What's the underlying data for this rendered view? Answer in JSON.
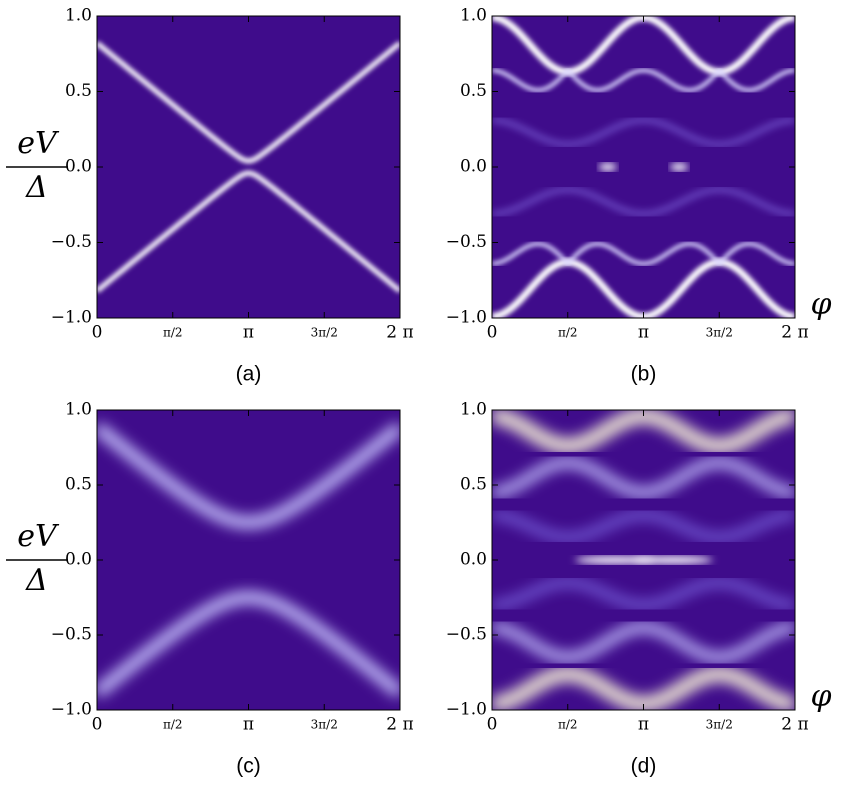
{
  "chart_data": [
    {
      "type": "heatmap",
      "caption": "(a)",
      "ylabel": {
        "top": "eV",
        "bottom": "Δ"
      },
      "xlim": [
        0,
        6.2832
      ],
      "ylim": [
        -1,
        1
      ],
      "xticks": [
        0,
        {
          "value": 1.5708,
          "label": "π/2"
        },
        {
          "value": 3.1416,
          "label": "π"
        },
        {
          "value": 4.7124,
          "label": "3π/2"
        },
        {
          "value": 6.2832,
          "label": "2 π"
        }
      ],
      "yticks": [
        {
          "value": -1,
          "label": "−1.0"
        },
        {
          "value": -0.5,
          "label": "−0.5"
        },
        {
          "value": 0,
          "label": "0.0"
        },
        {
          "value": 0.5,
          "label": "0.5"
        },
        {
          "value": 1,
          "label": "1.0"
        }
      ]
    },
    {
      "type": "heatmap",
      "caption": "(b)",
      "xlabel": "φ",
      "xlim": [
        0,
        6.2832
      ],
      "ylim": [
        -1,
        1
      ],
      "xticks": [
        0,
        {
          "value": 1.5708,
          "label": "π/2"
        },
        {
          "value": 3.1416,
          "label": "π"
        },
        {
          "value": 4.7124,
          "label": "3π/2"
        },
        {
          "value": 6.2832,
          "label": "2 π"
        }
      ],
      "yticks": [
        {
          "value": -1,
          "label": "−1.0"
        },
        {
          "value": -0.5,
          "label": "−0.5"
        },
        {
          "value": 0,
          "label": "0.0"
        },
        {
          "value": 0.5,
          "label": "0.5"
        },
        {
          "value": 1,
          "label": "1.0"
        }
      ]
    },
    {
      "type": "heatmap",
      "caption": "(c)",
      "ylabel": {
        "top": "eV",
        "bottom": "Δ"
      },
      "xlim": [
        0,
        6.2832
      ],
      "ylim": [
        -1,
        1
      ],
      "xticks": [
        0,
        {
          "value": 1.5708,
          "label": "π/2"
        },
        {
          "value": 3.1416,
          "label": "π"
        },
        {
          "value": 4.7124,
          "label": "3π/2"
        },
        {
          "value": 6.2832,
          "label": "2 π"
        }
      ],
      "yticks": [
        {
          "value": -1,
          "label": "−1.0"
        },
        {
          "value": -0.5,
          "label": "−0.5"
        },
        {
          "value": 0,
          "label": "0.0"
        },
        {
          "value": 0.5,
          "label": "0.5"
        },
        {
          "value": 1,
          "label": "1.0"
        }
      ]
    },
    {
      "type": "heatmap",
      "caption": "(d)",
      "xlabel": "φ",
      "xlim": [
        0,
        6.2832
      ],
      "ylim": [
        -1,
        1
      ],
      "xticks": [
        0,
        {
          "value": 1.5708,
          "label": "π/2"
        },
        {
          "value": 3.1416,
          "label": "π"
        },
        {
          "value": 4.7124,
          "label": "3π/2"
        },
        {
          "value": 6.2832,
          "label": "2 π"
        }
      ],
      "yticks": [
        {
          "value": -1,
          "label": "−1.0"
        },
        {
          "value": -0.5,
          "label": "−0.5"
        },
        {
          "value": 0,
          "label": "0.0"
        },
        {
          "value": 0.5,
          "label": "0.5"
        },
        {
          "value": 1,
          "label": "1.0"
        }
      ]
    }
  ]
}
